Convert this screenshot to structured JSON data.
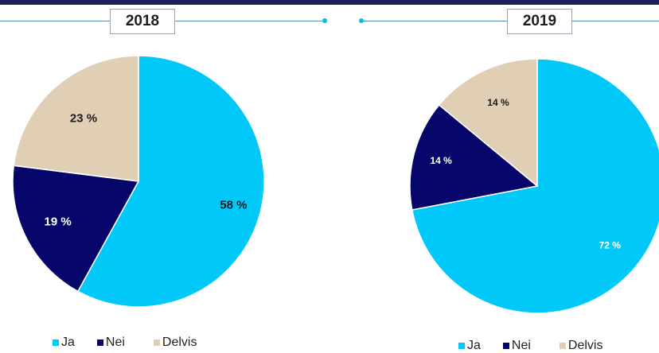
{
  "chart_data": [
    {
      "type": "pie",
      "title": "2018",
      "categories": [
        "Ja",
        "Nei",
        "Delvis"
      ],
      "values": [
        58,
        19,
        23
      ],
      "labels": [
        "58 %",
        "19 %",
        "23 %"
      ],
      "colors": [
        "#00c8f8",
        "#05056a",
        "#e0cfb5"
      ],
      "label_colors": [
        "#1b1b1b",
        "#ffffff",
        "#1b1b1b"
      ],
      "legend": "bottom"
    },
    {
      "type": "pie",
      "title": "2019",
      "categories": [
        "Ja",
        "Nei",
        "Delvis"
      ],
      "values": [
        72,
        14,
        14
      ],
      "labels": [
        "72 %",
        "14 %",
        "14 %"
      ],
      "colors": [
        "#00c8f8",
        "#05056a",
        "#e0cfb5"
      ],
      "label_colors": [
        "#ffffff",
        "#ffffff",
        "#1b1b1b"
      ],
      "legend": "bottom"
    }
  ]
}
